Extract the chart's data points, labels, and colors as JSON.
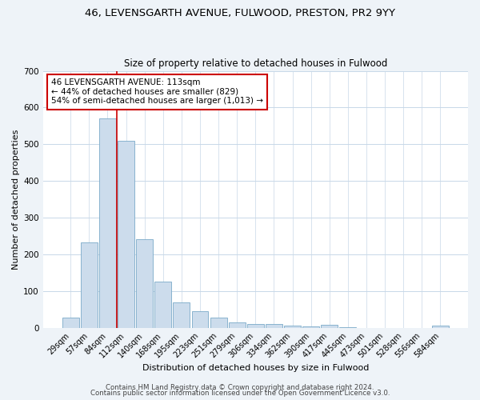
{
  "title": "46, LEVENSGARTH AVENUE, FULWOOD, PRESTON, PR2 9YY",
  "subtitle": "Size of property relative to detached houses in Fulwood",
  "xlabel": "Distribution of detached houses by size in Fulwood",
  "ylabel": "Number of detached properties",
  "bar_labels": [
    "29sqm",
    "57sqm",
    "84sqm",
    "112sqm",
    "140sqm",
    "168sqm",
    "195sqm",
    "223sqm",
    "251sqm",
    "279sqm",
    "306sqm",
    "334sqm",
    "362sqm",
    "390sqm",
    "417sqm",
    "445sqm",
    "473sqm",
    "501sqm",
    "528sqm",
    "556sqm",
    "584sqm"
  ],
  "bar_values": [
    28,
    233,
    570,
    510,
    242,
    125,
    70,
    45,
    27,
    15,
    10,
    11,
    5,
    4,
    8,
    1,
    0,
    0,
    0,
    0,
    6
  ],
  "bar_color": "#ccdcec",
  "bar_edge_color": "#7aaac8",
  "vline_x": 2.5,
  "vline_color": "#cc0000",
  "annotation_text": "46 LEVENSGARTH AVENUE: 113sqm\n← 44% of detached houses are smaller (829)\n54% of semi-detached houses are larger (1,013) →",
  "annotation_box_color": "#ffffff",
  "annotation_box_edge_color": "#cc0000",
  "ylim": [
    0,
    700
  ],
  "yticks": [
    0,
    100,
    200,
    300,
    400,
    500,
    600,
    700
  ],
  "bg_color": "#eef3f8",
  "plot_bg_color": "#ffffff",
  "grid_color": "#c8d8e8",
  "footer_line1": "Contains HM Land Registry data © Crown copyright and database right 2024.",
  "footer_line2": "Contains public sector information licensed under the Open Government Licence v3.0.",
  "title_fontsize": 9.5,
  "subtitle_fontsize": 8.5,
  "ylabel_fontsize": 8,
  "xlabel_fontsize": 8,
  "annotation_fontsize": 7.5,
  "footer_fontsize": 6.2,
  "tick_fontsize": 7,
  "ytick_fontsize": 7.5
}
